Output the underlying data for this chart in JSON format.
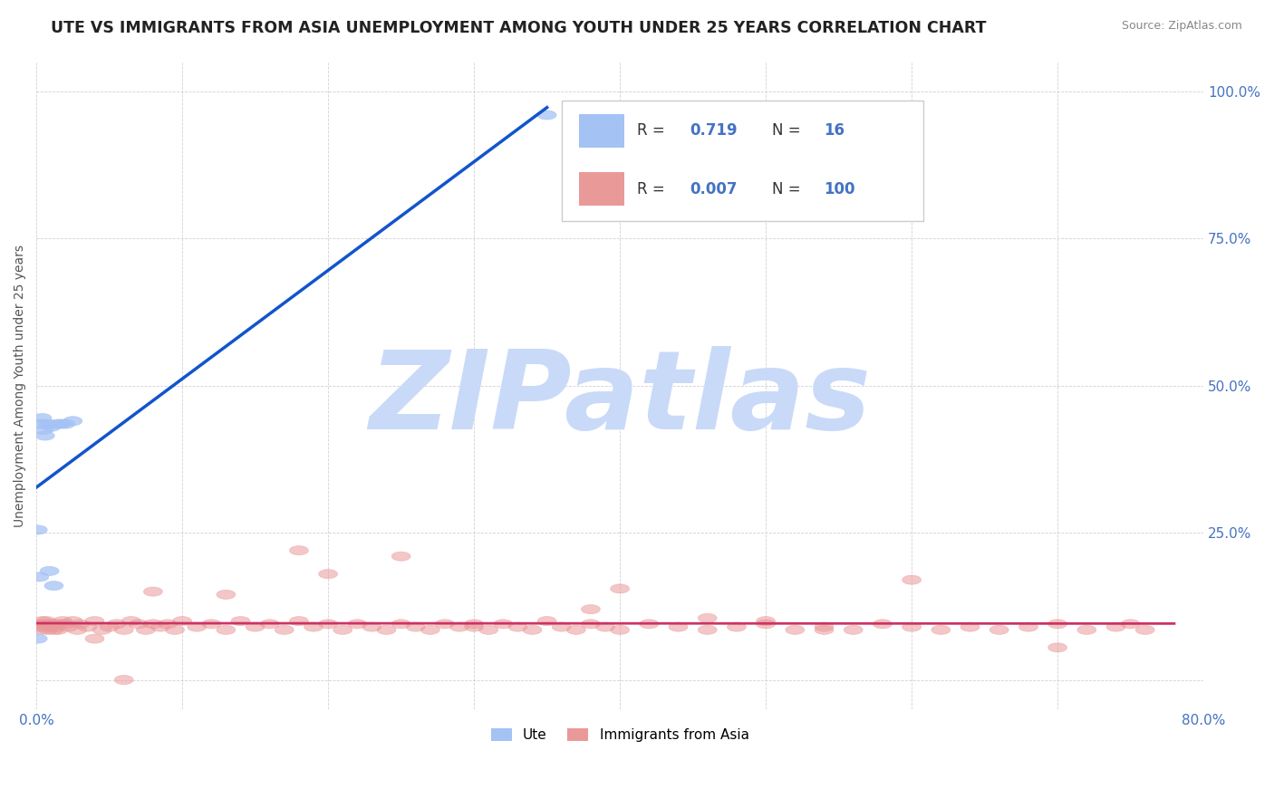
{
  "title": "UTE VS IMMIGRANTS FROM ASIA UNEMPLOYMENT AMONG YOUTH UNDER 25 YEARS CORRELATION CHART",
  "source": "Source: ZipAtlas.com",
  "ylabel": "Unemployment Among Youth under 25 years",
  "xlim": [
    0.0,
    0.8
  ],
  "ylim": [
    -0.05,
    1.05
  ],
  "xticks": [
    0.0,
    0.1,
    0.2,
    0.3,
    0.4,
    0.5,
    0.6,
    0.7,
    0.8
  ],
  "xticklabels": [
    "0.0%",
    "",
    "",
    "",
    "",
    "",
    "",
    "",
    "80.0%"
  ],
  "yticks": [
    0.0,
    0.25,
    0.5,
    0.75,
    1.0
  ],
  "yticklabels": [
    "",
    "25.0%",
    "50.0%",
    "75.0%",
    "100.0%"
  ],
  "ute_scatter_color": "#a4c2f4",
  "ute_line_color": "#1155cc",
  "immigrants_scatter_color": "#ea9999",
  "immigrants_line_color": "#cc3366",
  "R_ute": 0.719,
  "N_ute": 16,
  "R_immigrants": 0.007,
  "N_immigrants": 100,
  "watermark": "ZIPatlas",
  "watermark_color": "#c9daf8",
  "legend_label_ute": "Ute",
  "legend_label_immigrants": "Immigrants from Asia",
  "ute_x": [
    0.001,
    0.002,
    0.003,
    0.004,
    0.005,
    0.006,
    0.008,
    0.009,
    0.01,
    0.012,
    0.015,
    0.017,
    0.02,
    0.025,
    0.001,
    0.35
  ],
  "ute_y": [
    0.255,
    0.175,
    0.435,
    0.445,
    0.425,
    0.415,
    0.435,
    0.185,
    0.43,
    0.16,
    0.435,
    0.435,
    0.435,
    0.44,
    0.07,
    0.96
  ],
  "immigrants_x": [
    0.001,
    0.002,
    0.003,
    0.004,
    0.005,
    0.006,
    0.007,
    0.008,
    0.009,
    0.01,
    0.011,
    0.012,
    0.013,
    0.014,
    0.015,
    0.017,
    0.018,
    0.02,
    0.022,
    0.025,
    0.028,
    0.03,
    0.035,
    0.04,
    0.045,
    0.05,
    0.055,
    0.06,
    0.065,
    0.07,
    0.075,
    0.08,
    0.085,
    0.09,
    0.095,
    0.1,
    0.11,
    0.12,
    0.13,
    0.14,
    0.15,
    0.16,
    0.17,
    0.18,
    0.19,
    0.2,
    0.21,
    0.22,
    0.23,
    0.24,
    0.25,
    0.26,
    0.27,
    0.28,
    0.29,
    0.3,
    0.31,
    0.32,
    0.33,
    0.34,
    0.35,
    0.36,
    0.37,
    0.38,
    0.39,
    0.4,
    0.42,
    0.44,
    0.46,
    0.48,
    0.5,
    0.52,
    0.54,
    0.56,
    0.58,
    0.6,
    0.62,
    0.64,
    0.66,
    0.68,
    0.7,
    0.72,
    0.74,
    0.76,
    0.6,
    0.4,
    0.25,
    0.2,
    0.13,
    0.08,
    0.06,
    0.04,
    0.18,
    0.5,
    0.38,
    0.46,
    0.54,
    0.3,
    0.7,
    0.75
  ],
  "immigrants_y": [
    0.095,
    0.09,
    0.085,
    0.1,
    0.095,
    0.09,
    0.1,
    0.085,
    0.095,
    0.095,
    0.09,
    0.085,
    0.095,
    0.09,
    0.085,
    0.095,
    0.1,
    0.095,
    0.09,
    0.1,
    0.085,
    0.095,
    0.09,
    0.1,
    0.085,
    0.09,
    0.095,
    0.085,
    0.1,
    0.095,
    0.085,
    0.095,
    0.09,
    0.095,
    0.085,
    0.1,
    0.09,
    0.095,
    0.085,
    0.1,
    0.09,
    0.095,
    0.085,
    0.1,
    0.09,
    0.095,
    0.085,
    0.095,
    0.09,
    0.085,
    0.095,
    0.09,
    0.085,
    0.095,
    0.09,
    0.09,
    0.085,
    0.095,
    0.09,
    0.085,
    0.1,
    0.09,
    0.085,
    0.095,
    0.09,
    0.085,
    0.095,
    0.09,
    0.085,
    0.09,
    0.095,
    0.085,
    0.09,
    0.085,
    0.095,
    0.09,
    0.085,
    0.09,
    0.085,
    0.09,
    0.095,
    0.085,
    0.09,
    0.085,
    0.17,
    0.155,
    0.21,
    0.18,
    0.145,
    0.15,
    0.0,
    0.07,
    0.22,
    0.1,
    0.12,
    0.105,
    0.085,
    0.095,
    0.055,
    0.095
  ]
}
